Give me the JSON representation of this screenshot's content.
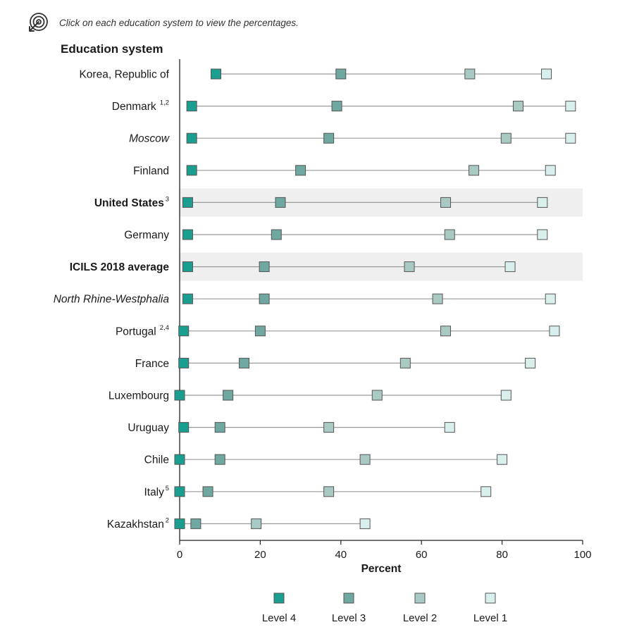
{
  "instruction": "Click on each education system to view the percentages.",
  "icons": {
    "instruction": "click-target-icon"
  },
  "colors": {
    "level4": "#1a9e90",
    "level3": "#6ea8a0",
    "level2": "#a9c9c5",
    "level1": "#d8efed",
    "highlight": "#efefef",
    "connector": "#9a9a9a"
  },
  "chart_data": {
    "type": "dot",
    "y_axis_title": "Education system",
    "xlabel": "Percent",
    "xlim": [
      0,
      100
    ],
    "xticks": [
      0,
      20,
      40,
      60,
      80,
      100
    ],
    "legend_placement": "bottom",
    "series": [
      {
        "name": "Level 4",
        "key": "level4"
      },
      {
        "name": "Level 3",
        "key": "level3"
      },
      {
        "name": "Level 2",
        "key": "level2"
      },
      {
        "name": "Level 1",
        "key": "level1"
      }
    ],
    "rows": [
      {
        "label": "Korea, Republic of",
        "note": "",
        "style": "normal",
        "highlight": false,
        "level4": 9,
        "level3": 40,
        "level2": 72,
        "level1": 91
      },
      {
        "label": "Denmark",
        "note": "1,2",
        "style": "normal",
        "highlight": false,
        "level4": 3,
        "level3": 39,
        "level2": 84,
        "level1": 97
      },
      {
        "label": "Moscow",
        "note": "",
        "style": "italic",
        "highlight": false,
        "level4": 3,
        "level3": 37,
        "level2": 81,
        "level1": 97
      },
      {
        "label": "Finland",
        "note": "",
        "style": "normal",
        "highlight": false,
        "level4": 3,
        "level3": 30,
        "level2": 73,
        "level1": 92
      },
      {
        "label": "United States",
        "note": "3",
        "style": "bold",
        "highlight": true,
        "level4": 2,
        "level3": 25,
        "level2": 66,
        "level1": 90
      },
      {
        "label": "Germany",
        "note": "",
        "style": "normal",
        "highlight": false,
        "level4": 2,
        "level3": 24,
        "level2": 67,
        "level1": 90
      },
      {
        "label": "ICILS 2018 average",
        "note": "",
        "style": "bold",
        "highlight": true,
        "level4": 2,
        "level3": 21,
        "level2": 57,
        "level1": 82
      },
      {
        "label": "North Rhine-Westphalia",
        "note": "",
        "style": "italic",
        "highlight": false,
        "level4": 2,
        "level3": 21,
        "level2": 64,
        "level1": 92
      },
      {
        "label": "Portugal",
        "note": "2,4",
        "style": "normal",
        "highlight": false,
        "level4": 1,
        "level3": 20,
        "level2": 66,
        "level1": 93
      },
      {
        "label": "France",
        "note": "",
        "style": "normal",
        "highlight": false,
        "level4": 1,
        "level3": 16,
        "level2": 56,
        "level1": 87
      },
      {
        "label": "Luxembourg",
        "note": "",
        "style": "normal",
        "highlight": false,
        "level4": 0,
        "level3": 12,
        "level2": 49,
        "level1": 81
      },
      {
        "label": "Uruguay",
        "note": "",
        "style": "normal",
        "highlight": false,
        "level4": 1,
        "level3": 10,
        "level2": 37,
        "level1": 67
      },
      {
        "label": "Chile",
        "note": "",
        "style": "normal",
        "highlight": false,
        "level4": 0,
        "level3": 10,
        "level2": 46,
        "level1": 80
      },
      {
        "label": "Italy",
        "note": "5",
        "style": "normal",
        "highlight": false,
        "level4": 0,
        "level3": 7,
        "level2": 37,
        "level1": 76
      },
      {
        "label": "Kazakhstan",
        "note": "2",
        "style": "normal",
        "highlight": false,
        "level4": 0,
        "level3": 4,
        "level2": 19,
        "level1": 46
      }
    ]
  }
}
